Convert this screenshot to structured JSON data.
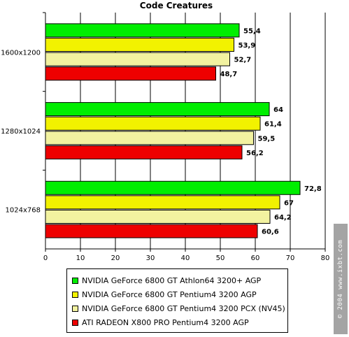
{
  "chart_data": {
    "type": "bar",
    "orientation": "horizontal",
    "title": "Code Creatures",
    "categories": [
      "1600x1200",
      "1280x1024",
      "1024x768"
    ],
    "series": [
      {
        "name": "NVIDIA GeForce 6800 GT Athlon64 3200+ AGP",
        "color": "#00ee00",
        "values": [
          55.4,
          64,
          72.8
        ],
        "labels": [
          "55,4",
          "64",
          "72,8"
        ]
      },
      {
        "name": "NVIDIA GeForce 6800 GT Pentium4 3200 AGP",
        "color": "#f2f200",
        "values": [
          53.9,
          61.4,
          67
        ],
        "labels": [
          "53,9",
          "61,4",
          "67"
        ]
      },
      {
        "name": "NVIDIA GeForce 6800 GT Pentium4 3200 PCX (NV45)",
        "color": "#f2f2a0",
        "values": [
          52.7,
          59.5,
          64.2
        ],
        "labels": [
          "52,7",
          "59,5",
          "64,2"
        ]
      },
      {
        "name": "ATI RADEON X800 PRO Pentium4 3200 AGP",
        "color": "#ee0000",
        "values": [
          48.7,
          56.2,
          60.6
        ],
        "labels": [
          "48,7",
          "56,2",
          "60,6"
        ]
      }
    ],
    "xlim": [
      0,
      80
    ],
    "xticks": [
      "0",
      "10",
      "20",
      "30",
      "40",
      "50",
      "60",
      "70",
      "80"
    ],
    "grid": true,
    "legend_position": "bottom"
  },
  "watermark": "© 2004 www.ixbt.com"
}
